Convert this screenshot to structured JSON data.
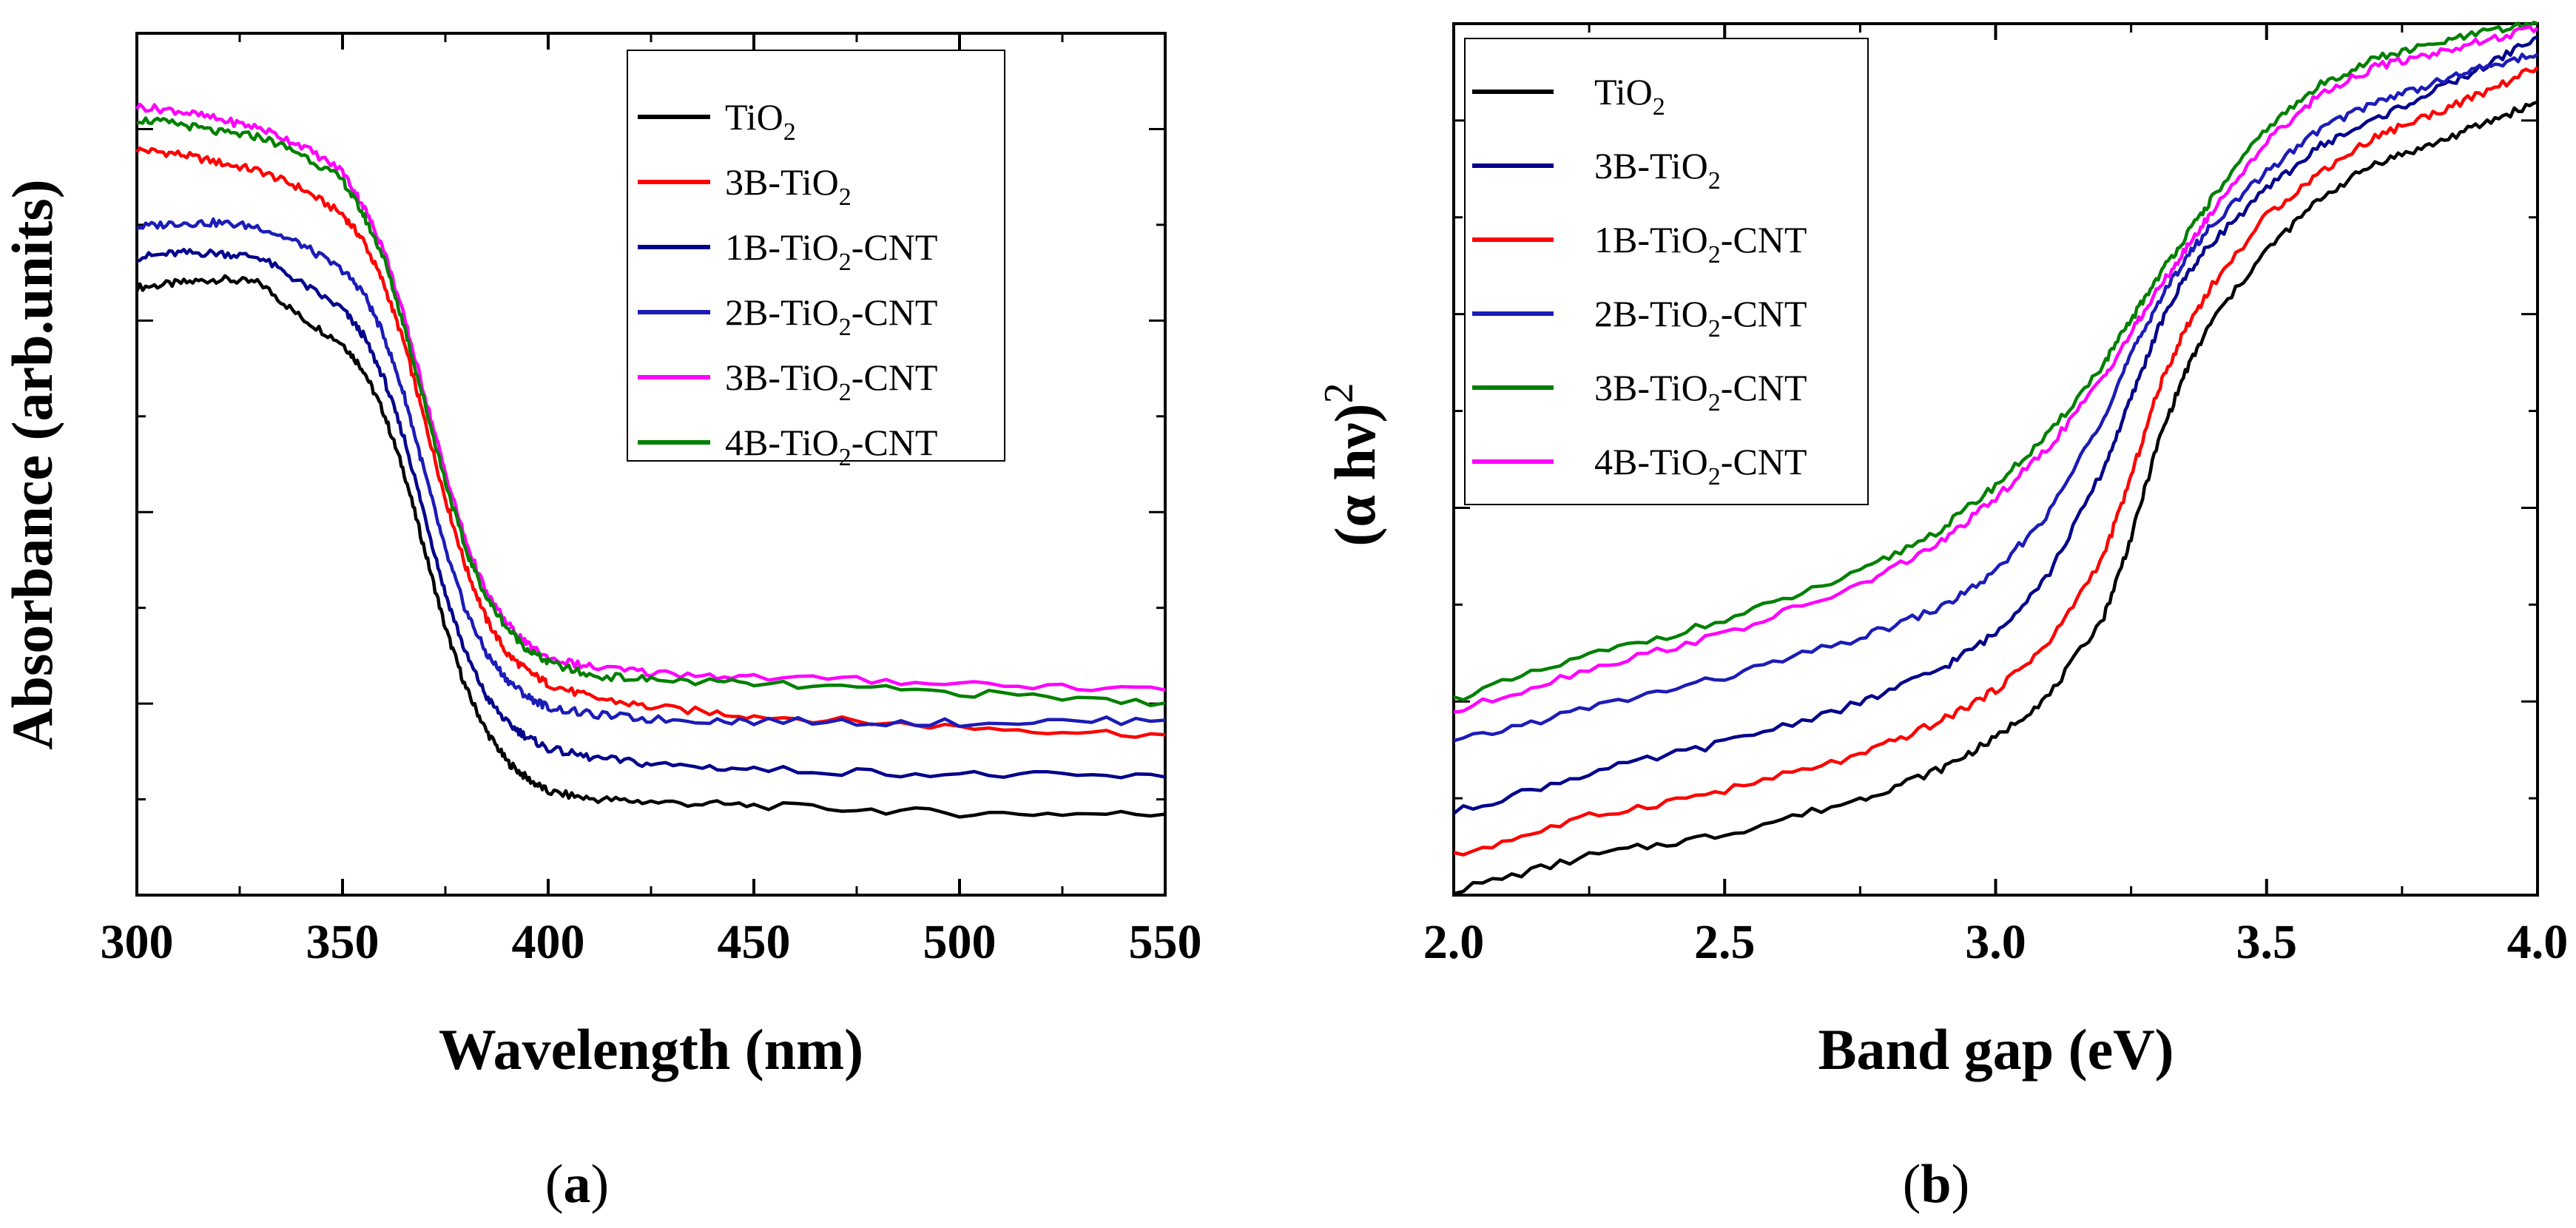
{
  "chart_data": [
    {
      "panel": "a",
      "type": "line",
      "caption": "(a)",
      "xlabel": "Wavelength (nm)",
      "ylabel": "Absorbance (arb.units)",
      "xlim": [
        300,
        550
      ],
      "ylim": [
        0,
        100
      ],
      "xticks": [
        "300",
        "350",
        "400",
        "450",
        "500",
        "550"
      ],
      "yticks_labeled": false,
      "legend_position": "top-right",
      "x": [
        300,
        310,
        320,
        330,
        340,
        350,
        355,
        360,
        365,
        370,
        375,
        380,
        385,
        390,
        395,
        400,
        410,
        425,
        450,
        500,
        550
      ],
      "series": [
        {
          "name": "TiO2",
          "label_main": "TiO",
          "label_sub": "2",
          "label_rest": "",
          "color": "#000000",
          "values": [
            70.5,
            71,
            71.5,
            71,
            67,
            64,
            61,
            56,
            49,
            40,
            31,
            24,
            19,
            15.5,
            13.5,
            12,
            11.2,
            10.8,
            10.4,
            9.5,
            9.4
          ]
        },
        {
          "name": "3B-TiO2",
          "label_main": "3B-TiO",
          "label_sub": "2",
          "label_rest": "",
          "color": "#ff0000",
          "values": [
            86.5,
            86,
            85,
            84,
            82,
            79,
            76,
            71,
            64,
            55,
            46,
            38,
            32,
            28,
            26,
            24.5,
            23,
            21.8,
            20.8,
            19.5,
            18.6
          ]
        },
        {
          "name": "1B-TiO2-CNT",
          "label_main": "1B-TiO",
          "label_sub": "2",
          "label_rest": "-CNT",
          "color": "#00008b",
          "values": [
            74,
            74.5,
            74.5,
            74,
            71,
            68,
            65,
            60,
            53,
            44,
            35,
            28,
            23,
            20,
            18.3,
            17,
            16,
            15.2,
            14.6,
            14,
            13.7
          ]
        },
        {
          "name": "2B-TiO2-CNT",
          "label_main": "2B-TiO",
          "label_sub": "2",
          "label_rest": "-CNT",
          "color": "#1c1cb8",
          "values": [
            77.5,
            78,
            78,
            77.5,
            75.5,
            72.5,
            70,
            65,
            58,
            49,
            40,
            33,
            28,
            25,
            23,
            21.8,
            21,
            20.4,
            20.2,
            20,
            20.3
          ]
        },
        {
          "name": "3B-TiO2-CNT",
          "label_main": "3B-TiO",
          "label_sub": "2",
          "label_rest": "-CNT",
          "color": "#ff00ff",
          "values": [
            91.5,
            91,
            90,
            89,
            87,
            84,
            80,
            75,
            67,
            58,
            49,
            41,
            35,
            31.5,
            29,
            27.5,
            26.5,
            25.8,
            25.3,
            24.6,
            23.8
          ]
        },
        {
          "name": "4B-TiO2-CNT",
          "label_main": "4B-TiO",
          "label_sub": "2",
          "label_rest": "-CNT",
          "color": "#008000",
          "values": [
            90,
            89.5,
            88.5,
            88,
            86,
            83,
            79,
            74,
            66,
            57,
            48,
            40,
            34.5,
            31,
            28.5,
            27,
            25.5,
            25,
            24.5,
            23.5,
            22.3
          ]
        }
      ]
    },
    {
      "panel": "b",
      "type": "line",
      "caption": "(b)",
      "xlabel": "Band gap (eV)",
      "ylabel_main": "(α hν)",
      "ylabel_sup": "2",
      "xlim": [
        2.0,
        4.0
      ],
      "ylim": [
        0,
        100
      ],
      "xticks": [
        "2.0",
        "2.5",
        "3.0",
        "3.5",
        "4.0"
      ],
      "yticks_labeled": false,
      "legend_position": "top-left",
      "x": [
        2.0,
        2.25,
        2.5,
        2.75,
        2.9,
        3.0,
        3.1,
        3.2,
        3.25,
        3.3,
        3.35,
        3.4,
        3.5,
        3.6,
        3.7,
        3.8,
        3.9,
        4.0
      ],
      "series": [
        {
          "name": "TiO2",
          "label_main": "TiO",
          "label_sub": "2",
          "label_rest": "",
          "color": "#000000",
          "values": [
            0.5,
            4.5,
            7,
            11,
            14.5,
            18,
            23,
            32,
            41,
            52,
            60,
            66,
            74,
            80,
            84,
            86,
            88.5,
            91
          ]
        },
        {
          "name": "3B-TiO2",
          "label_main": "3B-TiO",
          "label_sub": "2",
          "label_rest": "",
          "color": "#00008b",
          "values": [
            9.5,
            14,
            17.5,
            22,
            26,
            30,
            37,
            49,
            57,
            65,
            71,
            75,
            81,
            86,
            89,
            92,
            95,
            98.5
          ]
        },
        {
          "name": "1B-TiO2-CNT",
          "label_main": "1B-TiO",
          "label_sub": "2",
          "label_rest": "-CNT",
          "color": "#ff0000",
          "values": [
            4.5,
            9,
            12,
            16,
            20,
            23.5,
            29,
            39,
            48,
            58,
            65,
            70,
            78,
            83,
            87,
            89.5,
            92,
            95
          ]
        },
        {
          "name": "2B-TiO2-CNT",
          "label_main": "2B-TiO",
          "label_sub": "2",
          "label_rest": "-CNT",
          "color": "#1c1cb8",
          "values": [
            17.5,
            21.5,
            25,
            29.5,
            33,
            37,
            44,
            55,
            62,
            68,
            73,
            77,
            83,
            88,
            91,
            93,
            95,
            96.5
          ]
        },
        {
          "name": "3B-TiO2-CNT",
          "label_main": "3B-TiO",
          "label_sub": "2",
          "label_rest": "-CNT",
          "color": "#008000",
          "values": [
            22.5,
            27.5,
            31.5,
            37,
            42,
            47,
            53,
            61,
            66,
            71,
            75.5,
            80,
            88,
            93,
            96,
            97.5,
            99,
            100
          ]
        },
        {
          "name": "4B-TiO2-CNT",
          "label_main": "4B-TiO",
          "label_sub": "2",
          "label_rest": "-CNT",
          "color": "#ff00ff",
          "values": [
            21,
            26,
            30,
            35.5,
            40.5,
            45.5,
            51.5,
            59.5,
            64.5,
            69.5,
            74,
            78.5,
            86.5,
            92,
            95,
            96.5,
            98,
            99.5
          ]
        }
      ]
    }
  ]
}
